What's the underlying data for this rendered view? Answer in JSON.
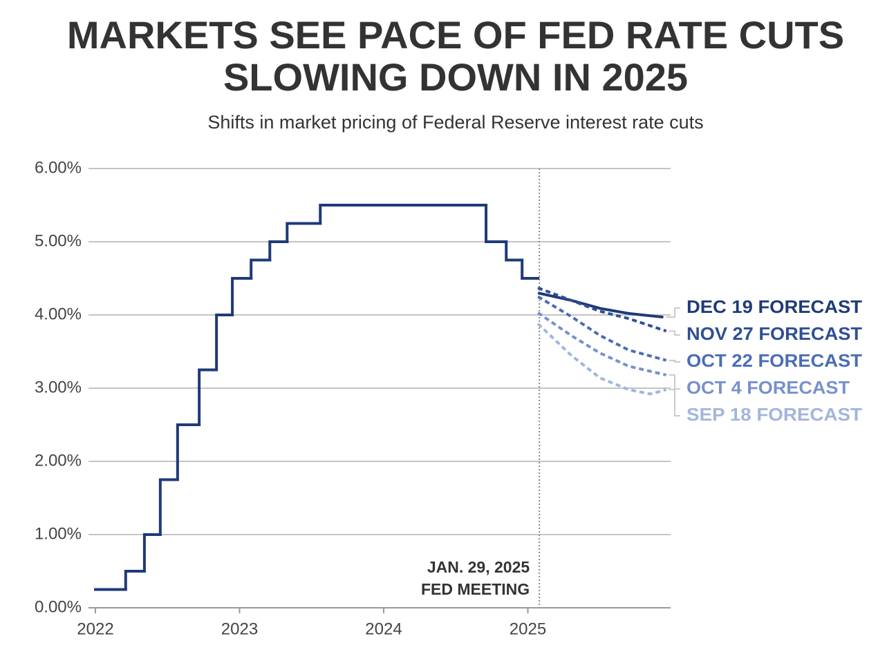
{
  "chart_data": {
    "type": "line",
    "title": [
      "MARKETS SEE PACE OF FED RATE CUTS",
      "SLOWING DOWN IN 2025"
    ],
    "subtitle": "Shifts in market pricing of Federal Reserve interest rate cuts",
    "xlim": [
      2022,
      2026
    ],
    "xticks": [
      2022,
      2023,
      2024,
      2025
    ],
    "ylim": [
      0,
      6
    ],
    "yticks": [
      {
        "value": 0,
        "label": "0.00%"
      },
      {
        "value": 1,
        "label": "1.00%"
      },
      {
        "value": 2,
        "label": "2.00%"
      },
      {
        "value": 3,
        "label": "3.00%"
      },
      {
        "value": 4,
        "label": "4.00%"
      },
      {
        "value": 5,
        "label": "5.00%"
      },
      {
        "value": 6,
        "label": "6.00%"
      }
    ],
    "grid": true,
    "annotation": {
      "x": 2025.08,
      "lines": [
        "JAN. 29, 2025",
        "FED MEETING"
      ]
    },
    "history": {
      "color": "#1f3a7a",
      "step": true,
      "x": [
        2022.0,
        2022.21,
        2022.34,
        2022.45,
        2022.57,
        2022.72,
        2022.84,
        2022.95,
        2023.08,
        2023.21,
        2023.33,
        2023.56,
        2024.71,
        2024.85,
        2024.96,
        2025.07
      ],
      "values": [
        0.25,
        0.5,
        1.0,
        1.75,
        2.5,
        3.25,
        4.0,
        4.5,
        4.75,
        5.0,
        5.25,
        5.5,
        5.0,
        4.75,
        4.5,
        4.5
      ]
    },
    "series": [
      {
        "name": "DEC 19 FORECAST",
        "color": "#1f3a7a",
        "dashed": false,
        "x": [
          2025.07,
          2025.3,
          2025.5,
          2025.7,
          2025.94
        ],
        "values": [
          4.3,
          4.2,
          4.09,
          4.02,
          3.97
        ]
      },
      {
        "name": "NOV 27 FORECAST",
        "color": "#2e4f95",
        "dashed": true,
        "x": [
          2025.07,
          2025.3,
          2025.5,
          2025.7,
          2025.96
        ],
        "values": [
          4.37,
          4.2,
          4.05,
          3.95,
          3.78
        ]
      },
      {
        "name": "OCT 22 FORECAST",
        "color": "#4a6db5",
        "dashed": true,
        "x": [
          2025.07,
          2025.3,
          2025.5,
          2025.7,
          2025.96
        ],
        "values": [
          4.25,
          3.98,
          3.72,
          3.52,
          3.38
        ]
      },
      {
        "name": "OCT 4 FORECAST",
        "color": "#7891cc",
        "dashed": true,
        "x": [
          2025.07,
          2025.3,
          2025.5,
          2025.7,
          2025.96
        ],
        "values": [
          4.03,
          3.72,
          3.48,
          3.3,
          3.18
        ]
      },
      {
        "name": "SEP 18 FORECAST",
        "color": "#a3b5dc",
        "dashed": true,
        "x": [
          2025.07,
          2025.3,
          2025.5,
          2025.7,
          2025.85,
          2025.96
        ],
        "values": [
          3.88,
          3.45,
          3.14,
          2.98,
          2.92,
          2.98
        ]
      }
    ]
  }
}
